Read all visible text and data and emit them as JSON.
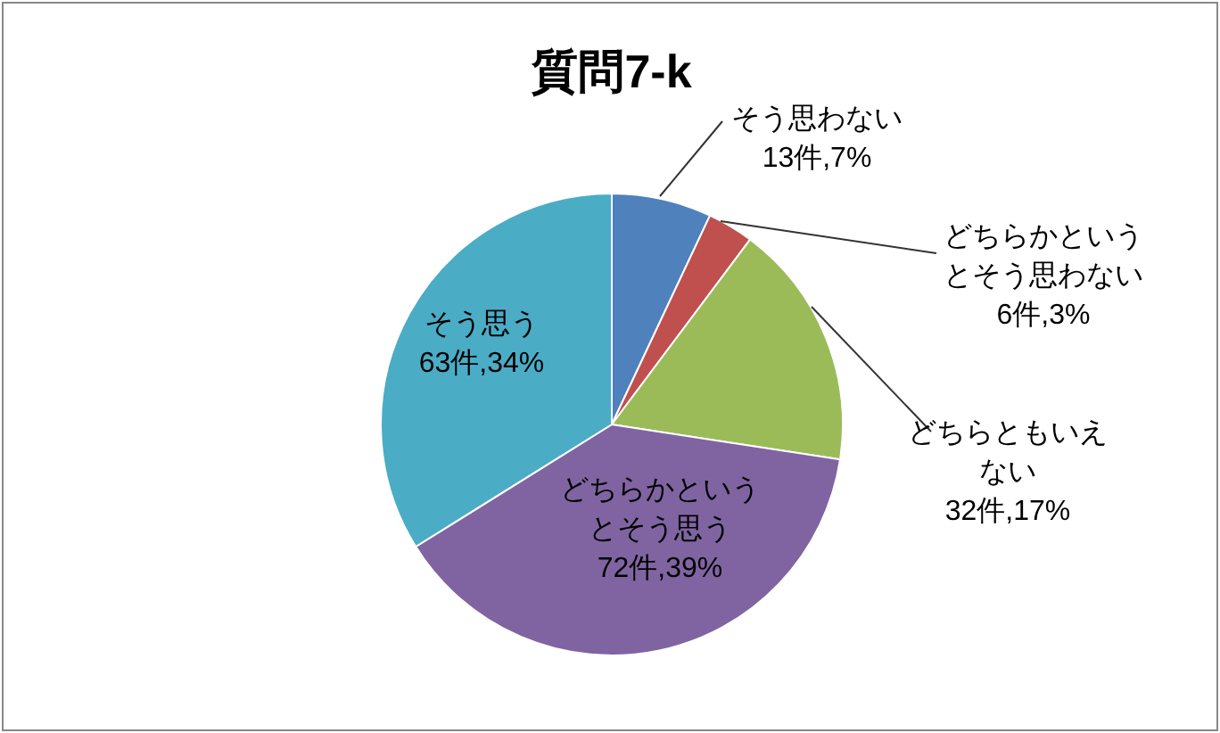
{
  "chart_data": {
    "type": "pie",
    "title": "質問7-k",
    "categories": [
      "そう思わない",
      "どちらかというとそう思わない",
      "どちらともいえない",
      "どちらかというとそう思う",
      "そう思う"
    ],
    "values": [
      13,
      6,
      32,
      72,
      63
    ],
    "value_labels": [
      "13件,7%",
      "6件,3%",
      "32件,17%",
      "72件,39%",
      "63件,34%"
    ],
    "colors": [
      "#4f81bd",
      "#c0504d",
      "#9bbb59",
      "#8064a2",
      "#4bacc6"
    ],
    "legend": false
  }
}
